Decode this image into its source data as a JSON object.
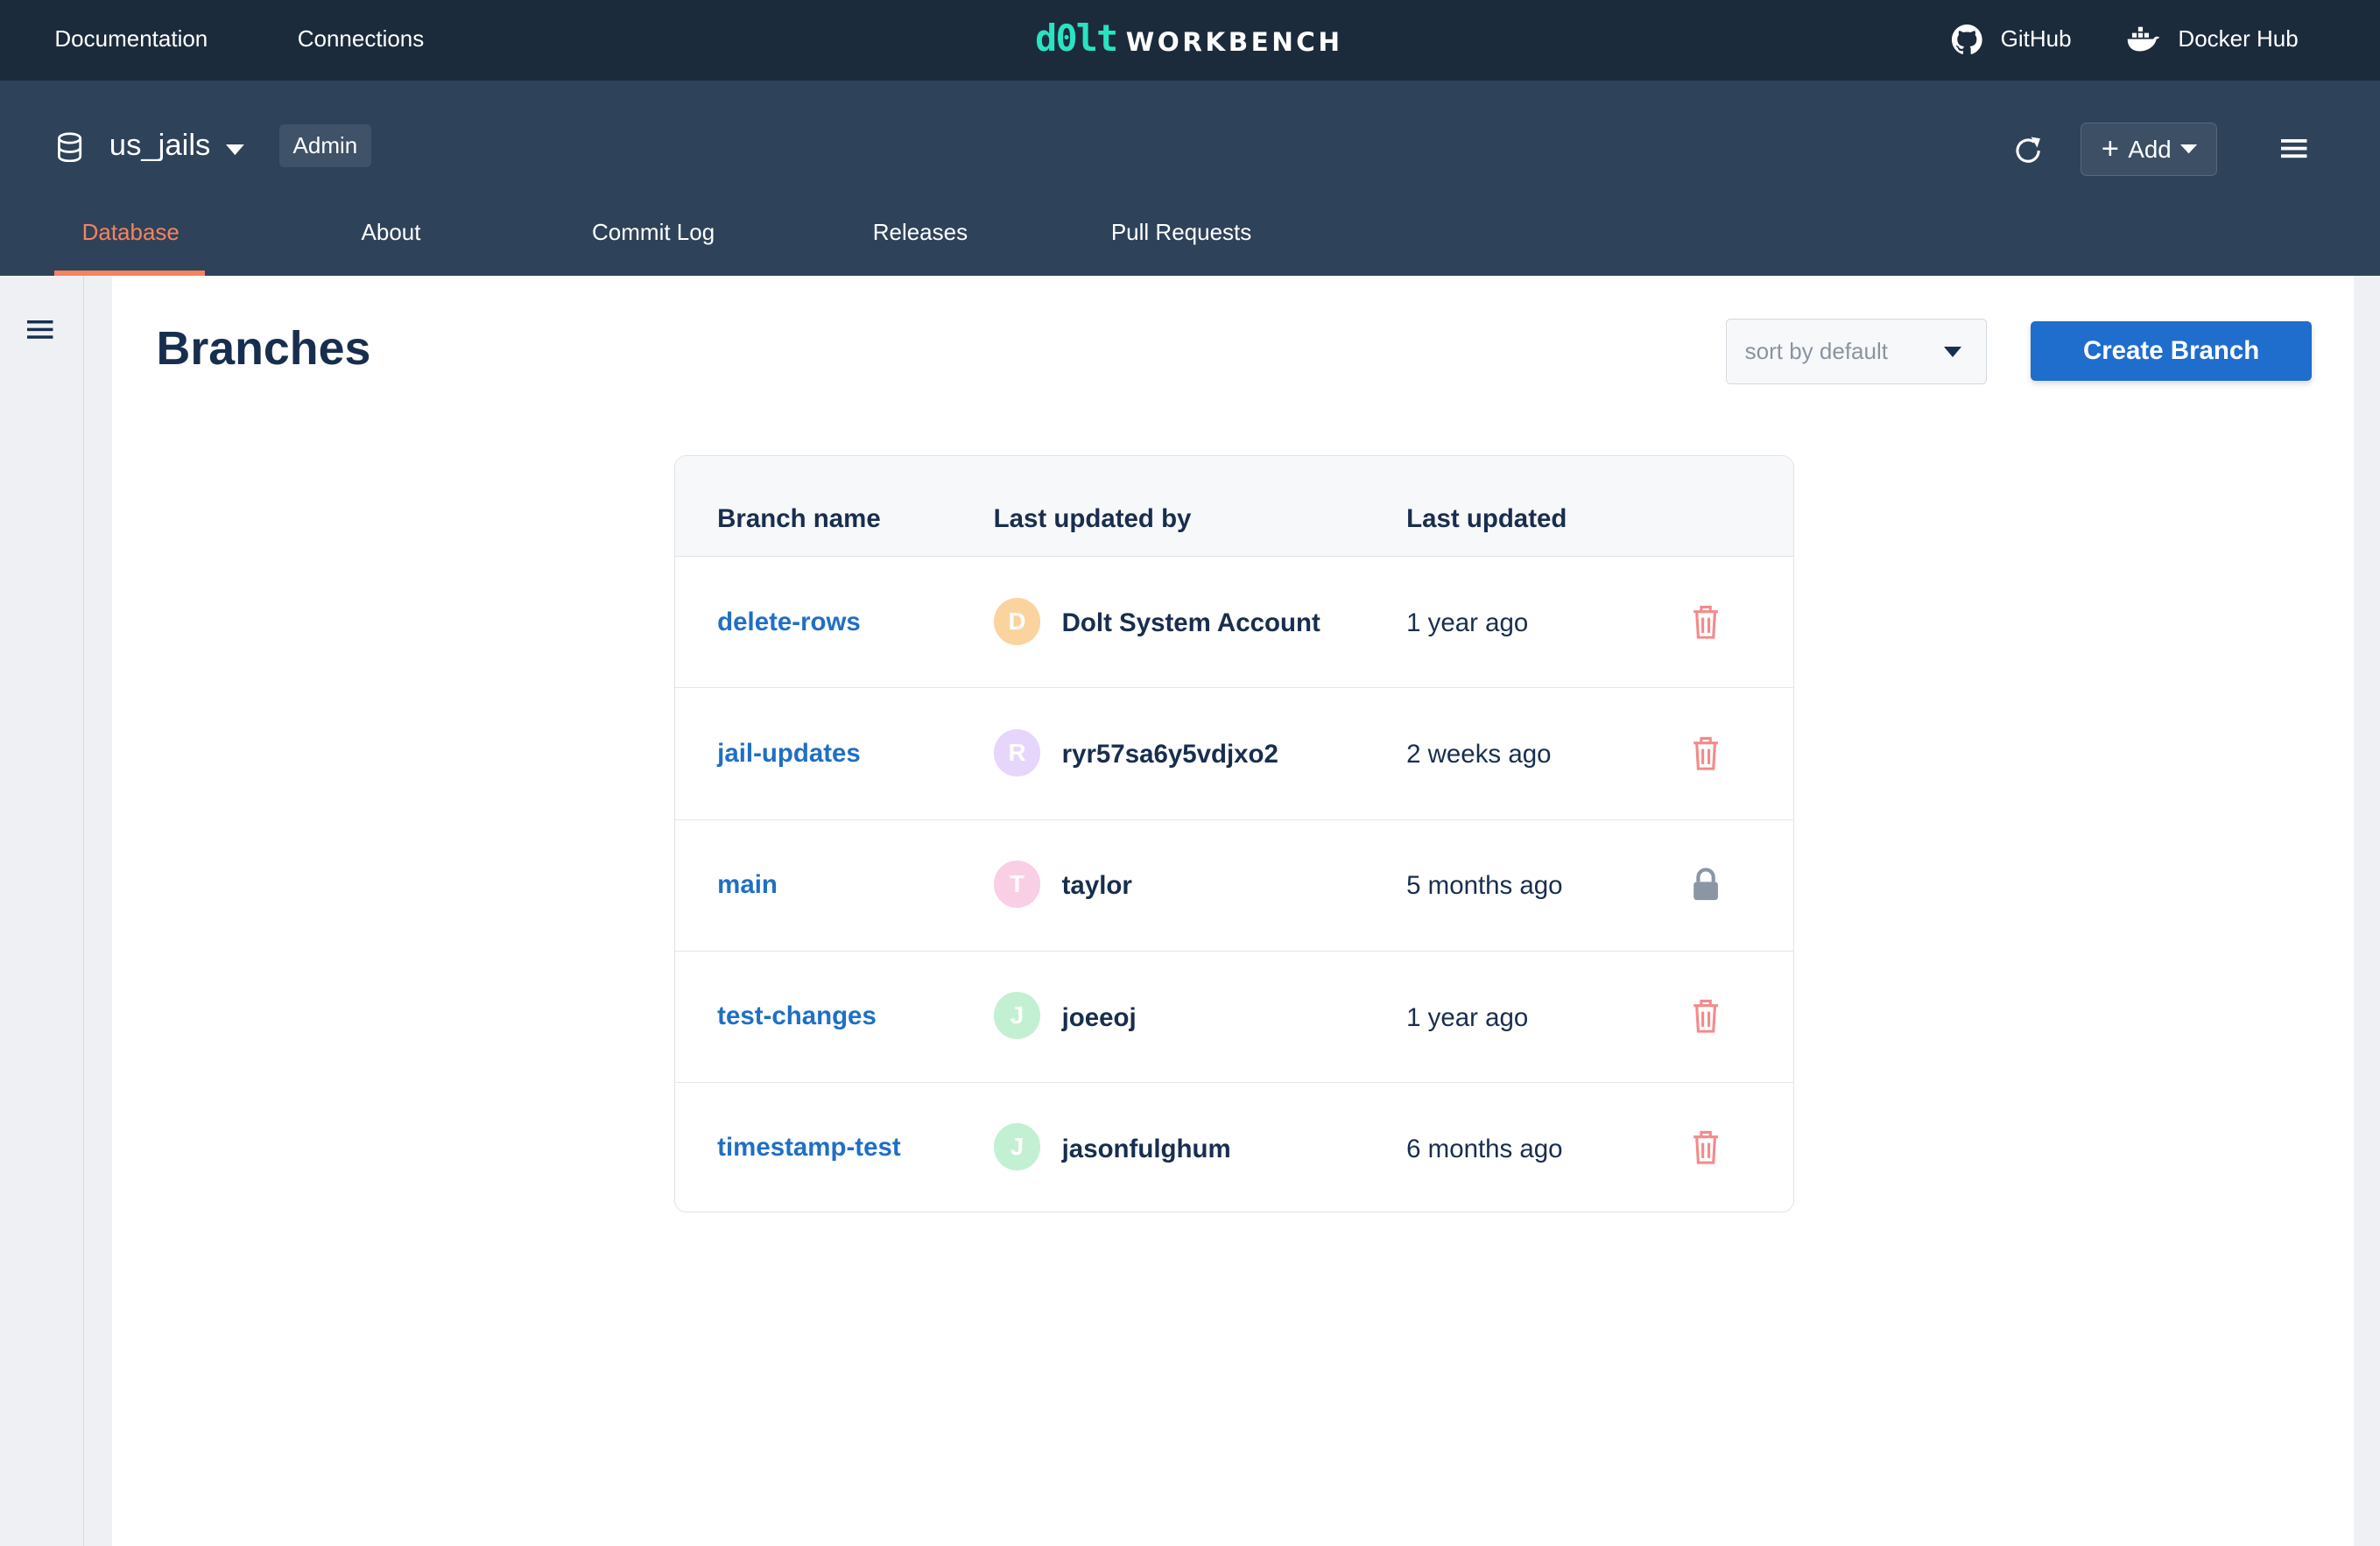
{
  "topbar": {
    "documentation": "Documentation",
    "connections": "Connections",
    "logo_mark": "d0lt",
    "logo_text": "WORKBENCH",
    "github": "GitHub",
    "dockerhub": "Docker Hub"
  },
  "header": {
    "database": "us_jails",
    "role_badge": "Admin",
    "add_label": "Add",
    "tabs": [
      {
        "label": "Database",
        "active": true
      },
      {
        "label": "About"
      },
      {
        "label": "Commit Log"
      },
      {
        "label": "Releases"
      },
      {
        "label": "Pull Requests"
      }
    ]
  },
  "main": {
    "title": "Branches",
    "sort_value": "sort by default",
    "create_label": "Create Branch"
  },
  "table": {
    "headers": [
      "Branch name",
      "Last updated by",
      "Last updated"
    ],
    "rows": [
      {
        "branch": "delete-rows",
        "initial": "D",
        "user": "Dolt System Account",
        "updated": "1 year ago",
        "avatar_color": "#fbd39e",
        "action": "trash-icon"
      },
      {
        "branch": "jail-updates",
        "initial": "R",
        "user": "ryr57sa6y5vdjxo2",
        "updated": "2 weeks ago",
        "avatar_color": "#e6d6fb",
        "action": "trash-icon"
      },
      {
        "branch": "main",
        "initial": "T",
        "user": "taylor",
        "updated": "5 months ago",
        "avatar_color": "#f9cfe5",
        "action": "lock-icon"
      },
      {
        "branch": "test-changes",
        "initial": "J",
        "user": "joeeoj",
        "updated": "1 year ago",
        "avatar_color": "#c3f0d3",
        "action": "trash-icon"
      },
      {
        "branch": "timestamp-test",
        "initial": "J",
        "user": "jasonfulghum",
        "updated": "6 months ago",
        "avatar_color": "#c3f0d3",
        "action": "trash-icon"
      }
    ]
  },
  "colors": {
    "accent": "#f5835e",
    "link": "#1f6fc5",
    "primary_button": "#1f6dcc",
    "trash": "#f48a8a",
    "lock": "#8a96a3"
  }
}
